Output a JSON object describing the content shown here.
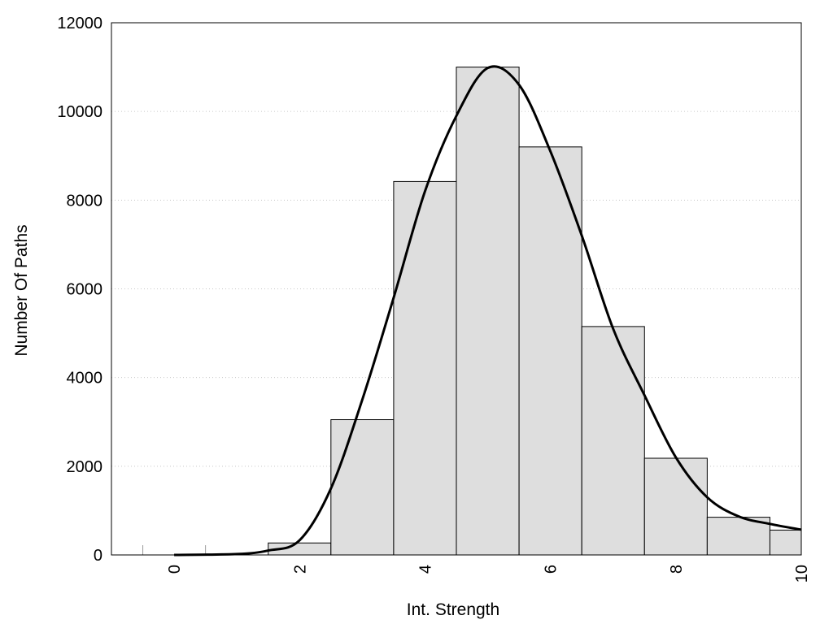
{
  "chart_data": {
    "type": "bar",
    "title": "",
    "xlabel": "Int. Strength",
    "ylabel": "Number Of Paths",
    "xlim": [
      -1,
      10
    ],
    "ylim": [
      0,
      12000
    ],
    "x_ticks": [
      "0",
      "2",
      "4",
      "6",
      "8",
      "10"
    ],
    "y_ticks": [
      "0",
      "2000",
      "4000",
      "6000",
      "8000",
      "10000",
      "12000"
    ],
    "grid": "horizontal dotted",
    "bin_width": 1,
    "bins": [
      {
        "center": 0,
        "value": 0
      },
      {
        "center": 1,
        "value": 0
      },
      {
        "center": 2,
        "value": 270
      },
      {
        "center": 3,
        "value": 3050
      },
      {
        "center": 4,
        "value": 8420
      },
      {
        "center": 5,
        "value": 11000
      },
      {
        "center": 6,
        "value": 9200
      },
      {
        "center": 7,
        "value": 5150
      },
      {
        "center": 8,
        "value": 2180
      },
      {
        "center": 9,
        "value": 850
      },
      {
        "center": 10,
        "value": 560
      }
    ],
    "curve": {
      "x": [
        0,
        1,
        1.5,
        2,
        2.5,
        3,
        3.5,
        4,
        4.5,
        5,
        5.5,
        6,
        6.5,
        7,
        7.5,
        8,
        8.5,
        9,
        9.5,
        10
      ],
      "y": [
        0,
        20,
        100,
        330,
        1500,
        3500,
        5800,
        8200,
        9900,
        10980,
        10600,
        9100,
        7200,
        5100,
        3600,
        2200,
        1300,
        870,
        700,
        570
      ]
    },
    "colors": {
      "bar_fill": "#dedede",
      "bar_stroke": "#000000",
      "curve": "#000000",
      "grid": "#c8c8c8"
    }
  }
}
